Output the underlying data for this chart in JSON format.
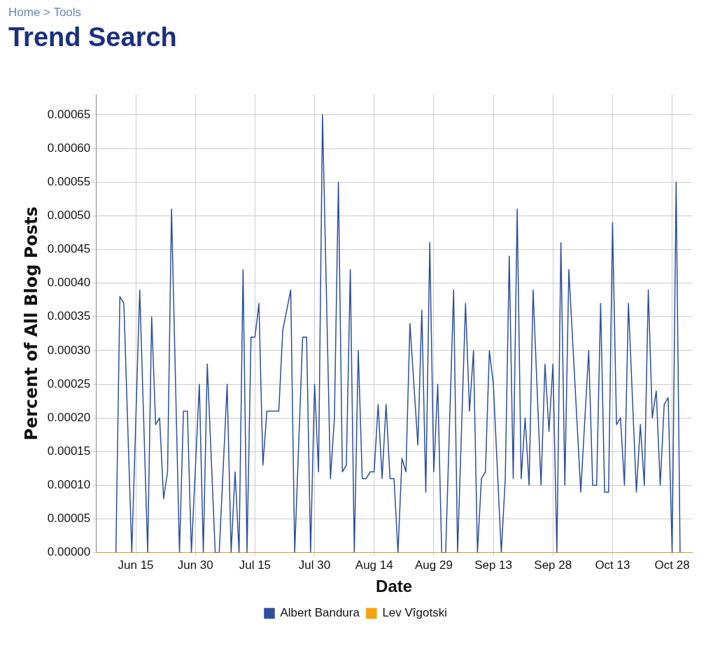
{
  "chart_data": {
    "type": "line",
    "title": "Trend Search",
    "annotations": [
      "Home > Tools"
    ],
    "xlabel": "Date",
    "ylabel": "Percent of All Blog Posts",
    "xlim": [
      "--06-05",
      "--11-02"
    ],
    "xticks": [
      {
        "value": "--06-15",
        "label": "Jun 15"
      },
      {
        "value": "--06-30",
        "label": "Jun 30"
      },
      {
        "value": "--07-15",
        "label": "Jul 15"
      },
      {
        "value": "--07-30",
        "label": "Jul 30"
      },
      {
        "value": "--08-14",
        "label": "Aug 14"
      },
      {
        "value": "--08-29",
        "label": "Aug 29"
      },
      {
        "value": "--09-13",
        "label": "Sep 13"
      },
      {
        "value": "--09-28",
        "label": "Sep 28"
      },
      {
        "value": "--10-13",
        "label": "Oct 13"
      },
      {
        "value": "--10-28",
        "label": "Oct 28"
      }
    ],
    "ylim": [
      0,
      0.00068
    ],
    "yticks": [
      {
        "value": 0,
        "label": "0.00000"
      },
      {
        "value": 5e-05,
        "label": "0.00005"
      },
      {
        "value": 0.0001,
        "label": "0.00010"
      },
      {
        "value": 0.00015,
        "label": "0.00015"
      },
      {
        "value": 0.0002,
        "label": "0.00020"
      },
      {
        "value": 0.00025,
        "label": "0.00025"
      },
      {
        "value": 0.0003,
        "label": "0.00030"
      },
      {
        "value": 0.00035,
        "label": "0.00035"
      },
      {
        "value": 0.0004,
        "label": "0.00040"
      },
      {
        "value": 0.00045,
        "label": "0.00045"
      },
      {
        "value": 0.0005,
        "label": "0.00050"
      },
      {
        "value": 0.00055,
        "label": "0.00055"
      },
      {
        "value": 0.0006,
        "label": "0.00060"
      },
      {
        "value": 0.00065,
        "label": "0.00065"
      }
    ],
    "grid": true,
    "legend": "bottom",
    "marker": "none",
    "line_style": "solid",
    "series": [
      {
        "name": "Albert Bandura",
        "color": "#2e4f9e",
        "x": [
          "--06-10",
          "--06-11",
          "--06-12",
          "--06-14",
          "--06-16",
          "--06-18",
          "--06-19",
          "--06-20",
          "--06-21",
          "--06-22",
          "--06-23",
          "--06-24",
          "--06-26",
          "--06-27",
          "--06-28",
          "--06-29",
          "--07-01",
          "--07-02",
          "--07-03",
          "--07-05",
          "--07-06",
          "--07-08",
          "--07-09",
          "--07-10",
          "--07-11",
          "--07-12",
          "--07-13",
          "--07-14",
          "--07-15",
          "--07-16",
          "--07-17",
          "--07-18",
          "--07-19",
          "--07-20",
          "--07-21",
          "--07-22",
          "--07-24",
          "--07-25",
          "--07-27",
          "--07-28",
          "--07-29",
          "--07-30",
          "--07-31",
          "--08-01",
          "--08-03",
          "--08-04",
          "--08-05",
          "--08-06",
          "--08-07",
          "--08-08",
          "--08-09",
          "--08-10",
          "--08-11",
          "--08-12",
          "--08-13",
          "--08-14",
          "--08-15",
          "--08-16",
          "--08-17",
          "--08-18",
          "--08-19",
          "--08-20",
          "--08-21",
          "--08-22",
          "--08-23",
          "--08-25",
          "--08-26",
          "--08-27",
          "--08-28",
          "--08-29",
          "--08-30",
          "--08-31",
          "--09-01",
          "--09-03",
          "--09-04",
          "--09-06",
          "--09-07",
          "--09-08",
          "--09-09",
          "--09-10",
          "--09-11",
          "--09-12",
          "--09-13",
          "--09-15",
          "--09-16",
          "--09-17",
          "--09-18",
          "--09-19",
          "--09-20",
          "--09-21",
          "--09-22",
          "--09-23",
          "--09-25",
          "--09-26",
          "--09-27",
          "--09-28",
          "--09-29",
          "--09-30",
          "--10-01",
          "--10-02",
          "--10-05",
          "--10-07",
          "--10-08",
          "--10-09",
          "--10-10",
          "--10-11",
          "--10-12",
          "--10-13",
          "--10-14",
          "--10-15",
          "--10-16",
          "--10-17",
          "--10-19",
          "--10-20",
          "--10-21",
          "--10-22",
          "--10-23",
          "--10-24",
          "--10-25",
          "--10-26",
          "--10-27",
          "--10-28",
          "--10-29",
          "--10-30"
        ],
        "values": [
          0,
          0.00038,
          0.00037,
          0,
          0.00039,
          0,
          0.00035,
          0.00019,
          0.0002,
          8e-05,
          0.00012,
          0.00051,
          0,
          0.00021,
          0.00021,
          0,
          0.00025,
          0,
          0.00028,
          0,
          0,
          0.00025,
          0,
          0.00012,
          0,
          0.00042,
          0,
          0.00032,
          0.00032,
          0.00037,
          0.00013,
          0.00021,
          0.00021,
          0.00021,
          0.00021,
          0.00033,
          0.00039,
          0,
          0.00032,
          0.00032,
          0,
          0.00025,
          0.00012,
          0.00065,
          0.00011,
          0.0002,
          0.00055,
          0.00012,
          0.00013,
          0.00042,
          0,
          0.0003,
          0.00011,
          0.00011,
          0.00012,
          0.00012,
          0.00022,
          0.00011,
          0.00022,
          0.00011,
          0.00011,
          0,
          0.00014,
          0.00012,
          0.00034,
          0.00016,
          0.00036,
          9e-05,
          0.00046,
          0.00012,
          0.00025,
          0,
          0,
          0.00039,
          0,
          0.00037,
          0.00021,
          0.0003,
          0,
          0.00011,
          0.00012,
          0.0003,
          0.00025,
          0,
          0.00011,
          0.00044,
          0.00011,
          0.00051,
          0.00011,
          0.0002,
          0.0001,
          0.00039,
          0.0001,
          0.00028,
          0.00018,
          0.00028,
          0,
          0.00046,
          0.0001,
          0.00042,
          9e-05,
          0.0003,
          0.0001,
          0.0001,
          0.00037,
          9e-05,
          9e-05,
          0.00049,
          0.00019,
          0.0002,
          0.0001,
          0.00037,
          9e-05,
          0.00019,
          0.0001,
          0.00039,
          0.0002,
          0.00024,
          0.0001,
          0.00022,
          0.00023,
          0,
          0.00055,
          0
        ]
      },
      {
        "name": "Lev Vîgotski",
        "color": "#f5a30f",
        "x": [
          "--06-05",
          "--11-02"
        ],
        "values": [
          0,
          0
        ]
      }
    ]
  }
}
